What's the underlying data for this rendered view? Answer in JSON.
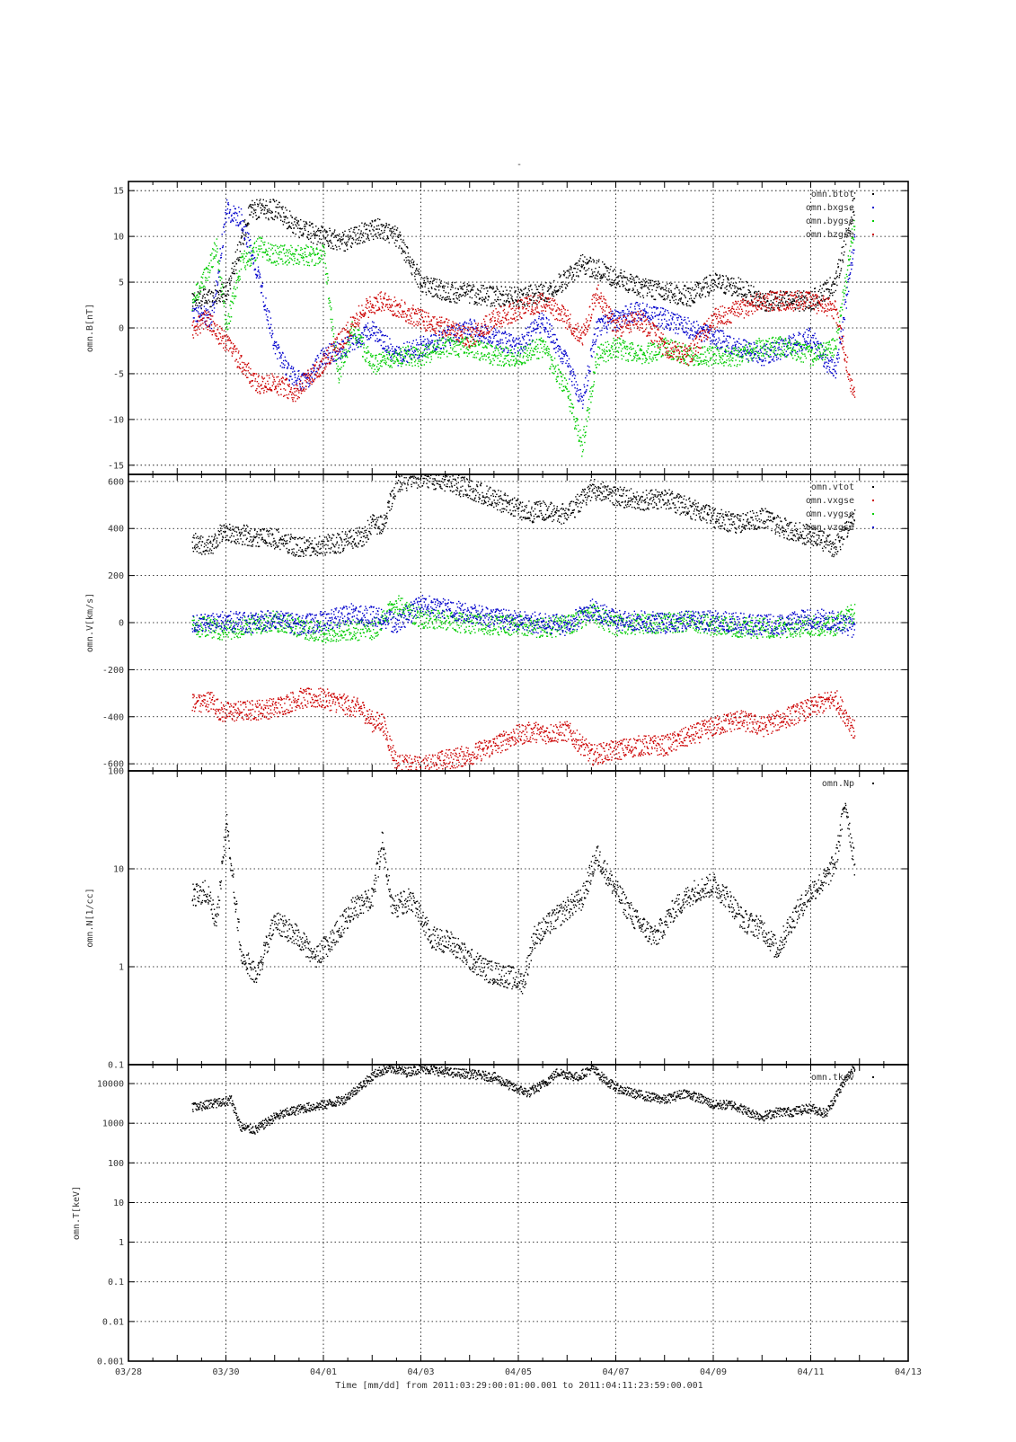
{
  "figure": {
    "top_mark": "-",
    "xlabel": "Time [mm/dd]  from 2011:03:29:00:01:00.001  to  2011:04:11:23:59:00.001",
    "x_ticks": [
      "03/28",
      "03/30",
      "04/01",
      "04/03",
      "04/05",
      "04/07",
      "04/09",
      "04/11",
      "04/13"
    ]
  },
  "chart_data": [
    {
      "type": "scatter",
      "panel": "B",
      "ylabel": "omn.B[nT]",
      "ylim": [
        -16,
        16
      ],
      "yticks": [
        -15,
        -10,
        -5,
        0,
        5,
        10,
        15
      ],
      "xlim_days": [
        0,
        16
      ],
      "grid": true,
      "legend_position": "top-right",
      "series": [
        {
          "name": "omn.btot",
          "color": "#000000",
          "x": [
            1.3,
            1.7,
            2.0,
            2.5,
            3.0,
            3.5,
            4.0,
            4.4,
            4.8,
            5.1,
            5.5,
            6.0,
            6.5,
            7.0,
            7.5,
            8.0,
            8.5,
            9.0,
            9.3,
            9.6,
            10.0,
            10.5,
            11.0,
            11.5,
            12.0,
            12.5,
            13.0,
            13.5,
            14.0,
            14.5,
            14.9
          ],
          "y": [
            3,
            3.5,
            4,
            13,
            13,
            11,
            10,
            9.5,
            10.5,
            11,
            10,
            5,
            4,
            3.8,
            3.5,
            3.5,
            3.8,
            5.5,
            7,
            6.5,
            5.5,
            4.5,
            4,
            3.5,
            5,
            4.5,
            3,
            3,
            3,
            5,
            14
          ]
        },
        {
          "name": "omn.bxgse",
          "color": "#0000cc",
          "x": [
            1.3,
            1.7,
            2.0,
            2.3,
            2.7,
            3.0,
            3.3,
            3.6,
            4.0,
            4.5,
            5.0,
            5.5,
            6.0,
            6.5,
            7.0,
            7.5,
            8.0,
            8.5,
            9.0,
            9.3,
            9.6,
            10.0,
            10.5,
            11.0,
            11.5,
            12.0,
            12.5,
            13.0,
            13.5,
            14.0,
            14.5,
            14.9
          ],
          "y": [
            2,
            1,
            13,
            12,
            5,
            -2,
            -5,
            -6,
            -3,
            -2,
            0,
            -3,
            -2,
            -1,
            0,
            -1,
            -2,
            1,
            -4,
            -8,
            0,
            1,
            2,
            1,
            0,
            -1,
            -2,
            -3,
            -2,
            -1,
            -5,
            10
          ]
        },
        {
          "name": "omn.bygse",
          "color": "#00cc00",
          "x": [
            1.3,
            1.6,
            1.8,
            2.0,
            2.3,
            2.7,
            3.0,
            3.5,
            4.0,
            4.3,
            4.6,
            5.0,
            5.5,
            6.0,
            6.5,
            7.0,
            7.5,
            8.0,
            8.5,
            9.0,
            9.3,
            9.6,
            10.0,
            10.5,
            11.0,
            11.5,
            12.0,
            12.5,
            13.0,
            13.5,
            14.0,
            14.5,
            14.9
          ],
          "y": [
            3,
            6,
            9,
            0,
            7,
            9,
            8,
            8,
            8,
            -5,
            0,
            -4,
            -3,
            -3,
            -2,
            -2,
            -3,
            -3,
            -2,
            -7,
            -13,
            -3,
            -2,
            -3,
            -2,
            -3,
            -3,
            -3,
            -2,
            -2,
            -3,
            -2,
            12
          ]
        },
        {
          "name": "omn.bzgse",
          "color": "#cc0000",
          "x": [
            1.3,
            1.6,
            1.9,
            2.2,
            2.6,
            3.0,
            3.4,
            3.8,
            4.1,
            4.4,
            4.8,
            5.2,
            5.6,
            6.0,
            6.5,
            7.0,
            7.5,
            8.0,
            8.5,
            9.0,
            9.3,
            9.6,
            10.0,
            10.5,
            11.0,
            11.5,
            12.0,
            12.5,
            13.0,
            13.5,
            14.0,
            14.5,
            14.9
          ],
          "y": [
            0,
            1,
            -1,
            -3,
            -6,
            -6,
            -7,
            -5,
            -3,
            -1,
            2,
            3,
            2,
            1,
            0,
            -1,
            1,
            2,
            3,
            1,
            -1,
            4,
            0,
            1,
            -2,
            -3,
            1,
            2,
            3,
            3,
            3,
            2,
            -8
          ]
        }
      ]
    },
    {
      "type": "scatter",
      "panel": "V",
      "ylabel": "omn.V[km/s]",
      "ylim": [
        -630,
        630
      ],
      "yticks": [
        -600,
        -400,
        -200,
        0,
        200,
        400,
        600
      ],
      "xlim_days": [
        0,
        16
      ],
      "grid": true,
      "legend_position": "top-right",
      "series": [
        {
          "name": "omn.vtot",
          "color": "#000000",
          "x": [
            1.3,
            1.7,
            1.9,
            2.5,
            3.0,
            3.5,
            4.0,
            4.5,
            4.8,
            5.0,
            5.2,
            5.5,
            6.0,
            6.5,
            7.0,
            7.5,
            7.9,
            8.3,
            8.5,
            9.0,
            9.5,
            10.0,
            10.5,
            11.0,
            11.5,
            12.0,
            12.5,
            13.0,
            13.5,
            14.0,
            14.5,
            14.9
          ],
          "y": [
            340,
            330,
            390,
            370,
            360,
            320,
            330,
            350,
            370,
            420,
            420,
            600,
            620,
            600,
            570,
            530,
            490,
            470,
            480,
            460,
            570,
            540,
            520,
            530,
            490,
            450,
            420,
            450,
            400,
            370,
            320,
            470
          ]
        },
        {
          "name": "omn.vxgse",
          "color": "#cc0000",
          "x": [
            1.3,
            1.7,
            1.9,
            2.5,
            3.0,
            3.5,
            4.0,
            4.5,
            4.8,
            5.0,
            5.2,
            5.5,
            6.0,
            6.5,
            7.0,
            7.5,
            7.9,
            8.3,
            8.5,
            9.0,
            9.5,
            10.0,
            10.5,
            11.0,
            11.5,
            12.0,
            12.5,
            13.0,
            13.5,
            14.0,
            14.5,
            14.9
          ],
          "y": [
            -340,
            -330,
            -380,
            -370,
            -360,
            -320,
            -320,
            -350,
            -370,
            -420,
            -420,
            -600,
            -610,
            -580,
            -560,
            -520,
            -480,
            -460,
            -470,
            -460,
            -560,
            -540,
            -520,
            -520,
            -480,
            -440,
            -410,
            -440,
            -400,
            -360,
            -320,
            -460
          ]
        },
        {
          "name": "omn.vygse",
          "color": "#00cc00",
          "x": [
            1.3,
            1.7,
            2.0,
            2.5,
            3.0,
            3.5,
            4.0,
            4.5,
            5.0,
            5.5,
            6.0,
            6.5,
            7.0,
            7.5,
            8.0,
            8.5,
            9.0,
            9.5,
            10.0,
            10.5,
            11.0,
            11.5,
            12.0,
            12.5,
            13.0,
            13.5,
            14.0,
            14.5,
            14.9
          ],
          "y": [
            -10,
            -20,
            -30,
            -10,
            10,
            -20,
            -40,
            -30,
            -30,
            80,
            20,
            10,
            0,
            -10,
            -10,
            -20,
            -10,
            40,
            -10,
            -5,
            0,
            10,
            -10,
            -20,
            -20,
            -20,
            -10,
            -10,
            50
          ]
        },
        {
          "name": "omn.vzgse",
          "color": "#0000cc",
          "x": [
            1.3,
            1.7,
            2.0,
            2.5,
            3.0,
            3.5,
            4.0,
            4.5,
            5.0,
            5.5,
            6.0,
            6.5,
            7.0,
            7.5,
            8.0,
            8.5,
            9.0,
            9.5,
            10.0,
            10.5,
            11.0,
            11.5,
            12.0,
            12.5,
            13.0,
            13.5,
            14.0,
            14.5,
            14.9
          ],
          "y": [
            -10,
            0,
            10,
            0,
            20,
            -10,
            10,
            40,
            30,
            0,
            80,
            60,
            40,
            20,
            10,
            0,
            -10,
            60,
            10,
            10,
            0,
            10,
            10,
            0,
            -10,
            0,
            20,
            10,
            -20
          ]
        }
      ]
    },
    {
      "type": "scatter",
      "panel": "N",
      "ylabel": "omn.N[1/cc]",
      "yscale": "log",
      "ylim": [
        0.1,
        100
      ],
      "yticks": [
        "0.1",
        "1",
        "10",
        "100"
      ],
      "xlim_days": [
        0,
        16
      ],
      "grid": true,
      "legend_position": "top-right",
      "series": [
        {
          "name": "omn.Np",
          "color": "#000000",
          "x": [
            1.3,
            1.6,
            1.8,
            2.0,
            2.3,
            2.6,
            3.0,
            3.5,
            3.8,
            4.2,
            4.6,
            5.0,
            5.2,
            5.4,
            5.8,
            6.2,
            6.6,
            7.0,
            7.4,
            7.8,
            8.1,
            8.3,
            8.7,
            9.0,
            9.3,
            9.6,
            10.0,
            10.4,
            10.8,
            11.2,
            11.6,
            12.0,
            12.3,
            12.6,
            13.0,
            13.3,
            13.6,
            14.0,
            14.3,
            14.5,
            14.7,
            14.9
          ],
          "y": [
            5.5,
            6,
            3,
            30,
            1.5,
            0.8,
            3,
            2,
            1.2,
            2,
            4,
            5,
            20,
            4,
            5,
            2,
            1.8,
            1.2,
            0.9,
            0.8,
            0.7,
            2,
            3,
            4,
            5,
            14,
            6,
            3,
            2,
            4,
            6,
            7,
            5,
            3,
            2.5,
            1.5,
            3,
            6,
            8,
            12,
            50,
            10
          ]
        }
      ]
    },
    {
      "type": "scatter",
      "panel": "T",
      "ylabel": "omn.T[keV]",
      "yscale": "log",
      "ylim": [
        0.001,
        30000
      ],
      "yticks": [
        "0.001",
        "0.01",
        "0.1",
        "1",
        "10",
        "100",
        "1000",
        "10000"
      ],
      "xlim_days": [
        0,
        16
      ],
      "grid": true,
      "legend_position": "top-right",
      "series": [
        {
          "name": "omn.tkev",
          "color": "#000000",
          "x": [
            1.3,
            1.6,
            1.9,
            2.1,
            2.3,
            2.6,
            3.0,
            3.3,
            3.6,
            4.0,
            4.4,
            4.8,
            5.1,
            5.4,
            5.7,
            6.0,
            6.5,
            7.0,
            7.5,
            7.9,
            8.2,
            8.5,
            8.8,
            9.2,
            9.5,
            9.8,
            10.0,
            10.3,
            10.6,
            11.0,
            11.4,
            11.8,
            12.0,
            12.4,
            12.7,
            13.0,
            13.3,
            13.6,
            14.0,
            14.3,
            14.6,
            14.9
          ],
          "y": [
            2500,
            3000,
            3500,
            4000,
            800,
            700,
            1500,
            2000,
            2500,
            3000,
            4000,
            10000,
            20000,
            25000,
            20000,
            25000,
            20000,
            18000,
            15000,
            8000,
            6000,
            10000,
            20000,
            15000,
            25000,
            12000,
            8000,
            6000,
            5000,
            4000,
            6000,
            4000,
            3000,
            3000,
            2000,
            1500,
            2000,
            2000,
            2500,
            1800,
            8000,
            30000
          ]
        }
      ]
    }
  ]
}
